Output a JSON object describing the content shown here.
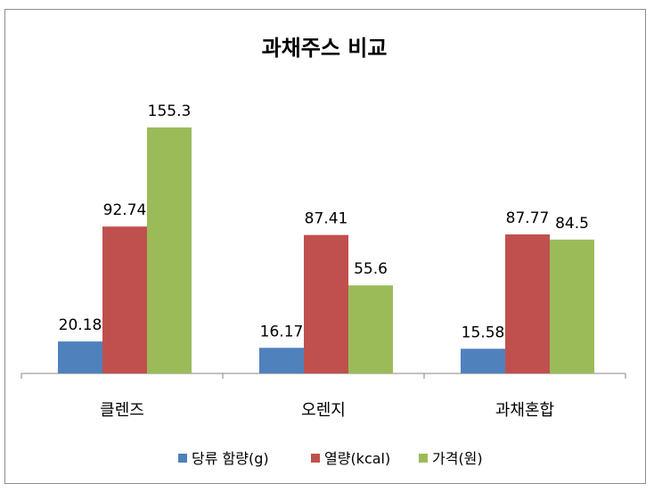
{
  "chart_data": {
    "type": "bar",
    "title": "과채주스 비교",
    "categories": [
      "클렌즈",
      "오렌지",
      "과채혼합"
    ],
    "series": [
      {
        "name": "당류 함량(g)",
        "values": [
          20.18,
          16.17,
          15.58
        ],
        "color": "#4f81bd"
      },
      {
        "name": "열량(kcal)",
        "values": [
          92.74,
          87.41,
          87.77
        ],
        "color": "#c0504d"
      },
      {
        "name": "가격(원)",
        "values": [
          155.3,
          55.6,
          84.5
        ],
        "color": "#9bbb59"
      }
    ],
    "ylim": [
      0,
      180
    ],
    "grid": false,
    "legend_position": "bottom",
    "data_labels": true
  }
}
